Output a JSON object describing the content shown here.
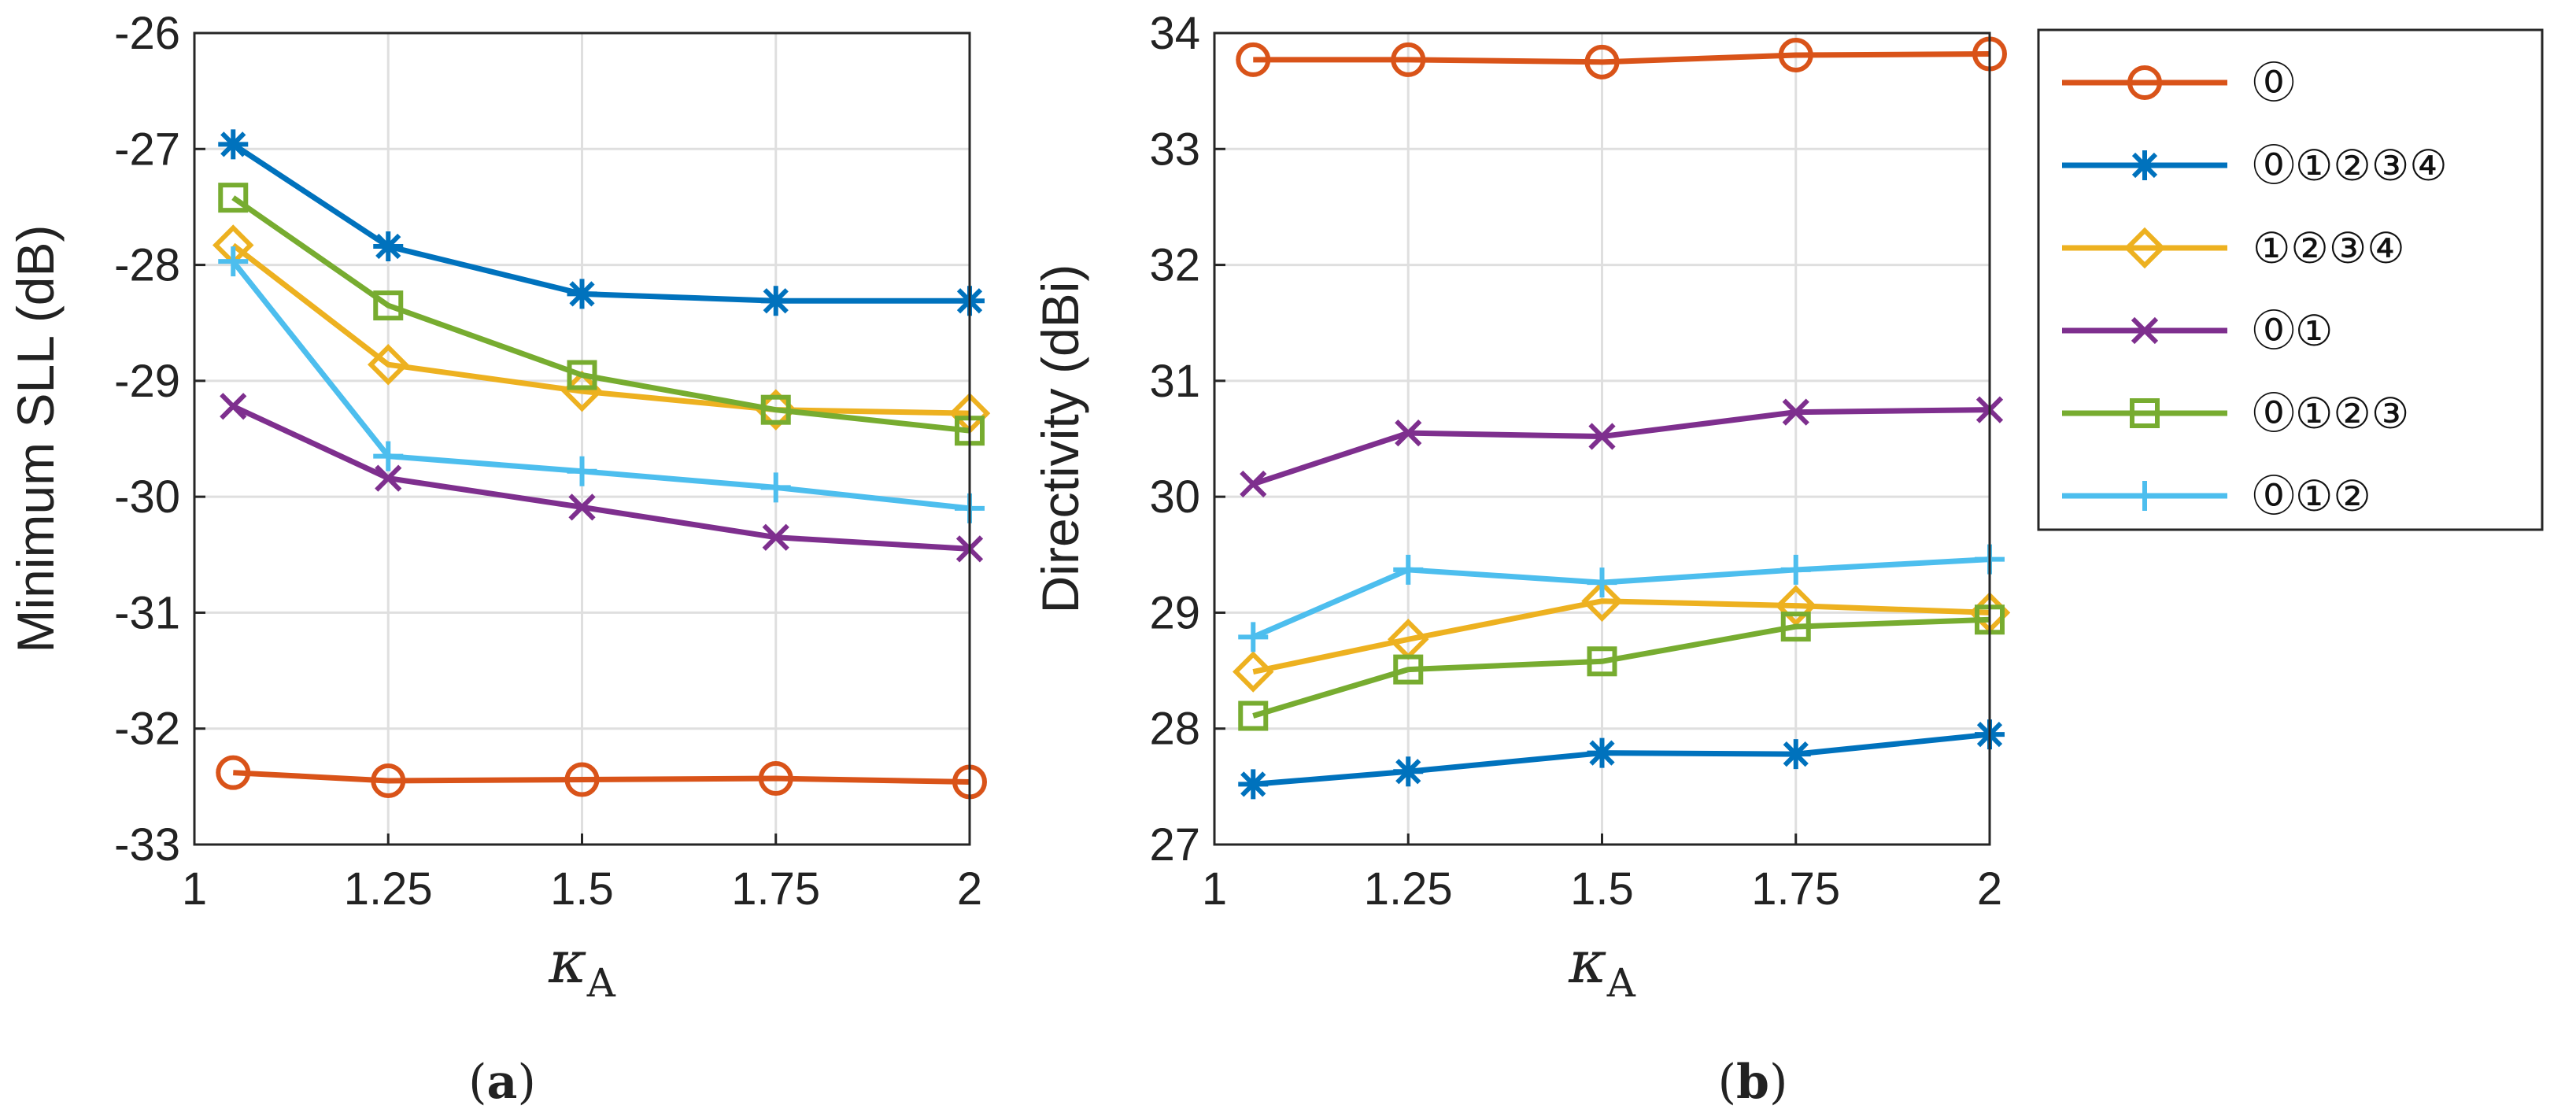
{
  "chart_data": [
    {
      "type": "line",
      "panel_caption": "a",
      "title": "",
      "xlabel": "κ",
      "xlabel_subscript": "A",
      "ylabel": "Minimum SLL (dB)",
      "xlim": [
        1,
        2
      ],
      "ylim": [
        -33,
        -26
      ],
      "xticks": [
        1,
        1.25,
        1.5,
        1.75,
        2
      ],
      "xtick_labels": [
        "1",
        "1.25",
        "1.5",
        "1.75",
        "2"
      ],
      "yticks": [
        -33,
        -32,
        -31,
        -30,
        -29,
        -28,
        -27,
        -26
      ],
      "ytick_labels": [
        "-33",
        "-32",
        "-31",
        "-30",
        "-29",
        "-28",
        "-27",
        "-26"
      ],
      "grid": true,
      "x": [
        1.05,
        1.25,
        1.5,
        1.75,
        2
      ],
      "series": [
        {
          "name": "⓪",
          "color": "#D95319",
          "marker": "circle",
          "values": [
            -32.38,
            -32.45,
            -32.44,
            -32.43,
            -32.46
          ]
        },
        {
          "name": "⓪①②③④",
          "color": "#0072BD",
          "marker": "asterisk",
          "values": [
            -26.96,
            -27.84,
            -28.25,
            -28.31,
            -28.31
          ]
        },
        {
          "name": "①②③④",
          "color": "#EDB120",
          "marker": "diamond",
          "values": [
            -27.83,
            -28.86,
            -29.09,
            -29.25,
            -29.28
          ]
        },
        {
          "name": "⓪①",
          "color": "#7E2F8E",
          "marker": "x",
          "values": [
            -29.22,
            -29.84,
            -30.09,
            -30.35,
            -30.45
          ]
        },
        {
          "name": "⓪①②③",
          "color": "#77AC30",
          "marker": "square",
          "values": [
            -27.42,
            -28.35,
            -28.95,
            -29.25,
            -29.43
          ]
        },
        {
          "name": "⓪①②",
          "color": "#4DBEEE",
          "marker": "plus",
          "values": [
            -27.97,
            -29.65,
            -29.78,
            -29.92,
            -30.1
          ]
        }
      ]
    },
    {
      "type": "line",
      "panel_caption": "b",
      "title": "",
      "xlabel": "κ",
      "xlabel_subscript": "A",
      "ylabel": "Directivity (dBi)",
      "xlim": [
        1,
        2
      ],
      "ylim": [
        27,
        34
      ],
      "xticks": [
        1,
        1.25,
        1.5,
        1.75,
        2
      ],
      "xtick_labels": [
        "1",
        "1.25",
        "1.5",
        "1.75",
        "2"
      ],
      "yticks": [
        27,
        28,
        29,
        30,
        31,
        32,
        33,
        34
      ],
      "ytick_labels": [
        "27",
        "28",
        "29",
        "30",
        "31",
        "32",
        "33",
        "34"
      ],
      "grid": true,
      "legend_position": "outside right",
      "x": [
        1.05,
        1.25,
        1.5,
        1.75,
        2
      ],
      "series": [
        {
          "name": "⓪",
          "color": "#D95319",
          "marker": "circle",
          "values": [
            33.77,
            33.77,
            33.75,
            33.81,
            33.82
          ]
        },
        {
          "name": "⓪①②③④",
          "color": "#0072BD",
          "marker": "asterisk",
          "values": [
            27.52,
            27.63,
            27.79,
            27.78,
            27.95
          ]
        },
        {
          "name": "①②③④",
          "color": "#EDB120",
          "marker": "diamond",
          "values": [
            28.49,
            28.77,
            29.1,
            29.06,
            29.0
          ]
        },
        {
          "name": "⓪①",
          "color": "#7E2F8E",
          "marker": "x",
          "values": [
            30.11,
            30.55,
            30.52,
            30.73,
            30.75
          ]
        },
        {
          "name": "⓪①②③",
          "color": "#77AC30",
          "marker": "square",
          "values": [
            28.11,
            28.51,
            28.58,
            28.88,
            28.94
          ]
        },
        {
          "name": "⓪①②",
          "color": "#4DBEEE",
          "marker": "plus",
          "values": [
            28.79,
            29.37,
            29.26,
            29.37,
            29.46
          ]
        }
      ]
    }
  ]
}
